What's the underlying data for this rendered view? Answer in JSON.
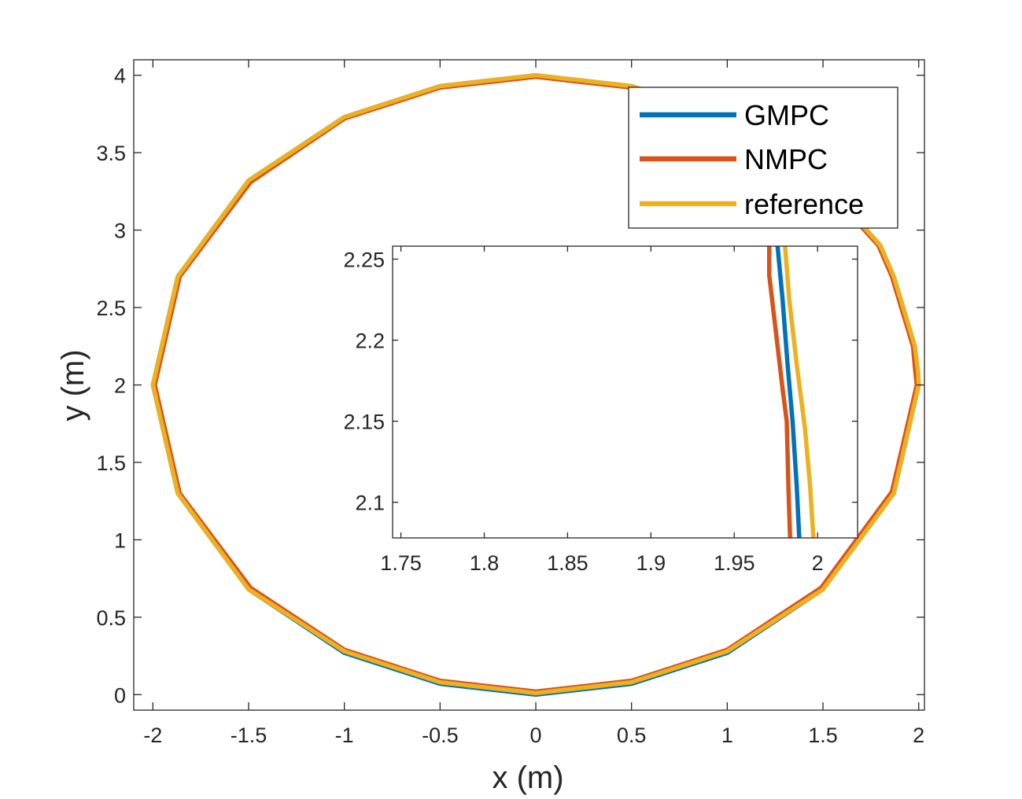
{
  "chart_data": [
    {
      "id": "main",
      "type": "line",
      "xlabel": "x (m)",
      "ylabel": "y (m)",
      "xlim": [
        -2.1,
        2.03
      ],
      "ylim": [
        -0.1,
        4.1
      ],
      "xticks": [
        "-2",
        "-1.5",
        "-1",
        "-0.5",
        "0",
        "0.5",
        "1",
        "1.5",
        "2"
      ],
      "yticks": [
        "0",
        "0.5",
        "1",
        "1.5",
        "2",
        "2.5",
        "3",
        "3.5",
        "4"
      ],
      "grid": false,
      "box": true,
      "legend": {
        "placement": "top-right"
      },
      "series": [
        {
          "name": "GMPC",
          "color": "#0072BD",
          "x": [
            0,
            0.5,
            1.0,
            1.5,
            1.87,
            2.0,
            1.987,
            1.98,
            1.87,
            1.8,
            1.5,
            1.0,
            0.5,
            0,
            -0.5,
            -1.0,
            -1.5,
            -1.87,
            -2.0,
            -1.87,
            -1.5,
            -1.0,
            -0.5,
            0
          ],
          "y": [
            0.0,
            0.07,
            0.27,
            0.68,
            1.3,
            2.0,
            2.08,
            2.25,
            2.7,
            2.9,
            3.32,
            3.73,
            3.93,
            4.0,
            3.93,
            3.73,
            3.32,
            2.7,
            2.0,
            1.3,
            0.68,
            0.27,
            0.07,
            0.0
          ]
        },
        {
          "name": "NMPC",
          "color": "#D95319",
          "x": [
            0,
            0.5,
            1.0,
            1.49,
            1.86,
            1.99,
            1.983,
            1.97,
            1.86,
            1.79,
            1.49,
            1.0,
            0.5,
            0,
            -0.5,
            -1.0,
            -1.49,
            -1.86,
            -1.99,
            -1.86,
            -1.49,
            -1.0,
            -0.5,
            0
          ],
          "y": [
            0.02,
            0.09,
            0.29,
            0.69,
            1.31,
            2.0,
            2.08,
            2.25,
            2.7,
            2.9,
            3.31,
            3.72,
            3.92,
            3.99,
            3.92,
            3.72,
            3.31,
            2.7,
            2.0,
            1.3,
            0.69,
            0.29,
            0.09,
            0.02
          ]
        },
        {
          "name": "reference",
          "color": "#EDB120",
          "x": [
            0,
            0.5,
            1.0,
            1.5,
            1.87,
            2.0,
            1.997,
            1.98,
            1.87,
            1.8,
            1.5,
            1.0,
            0.5,
            0,
            -0.5,
            -1.0,
            -1.5,
            -1.87,
            -2.0,
            -1.87,
            -1.5,
            -1.0,
            -0.5,
            0
          ],
          "y": [
            0.01,
            0.08,
            0.28,
            0.68,
            1.3,
            2.0,
            2.08,
            2.25,
            2.7,
            2.9,
            3.32,
            3.73,
            3.93,
            4.0,
            3.93,
            3.73,
            3.32,
            2.7,
            2.0,
            1.3,
            0.68,
            0.28,
            0.08,
            0.01
          ]
        }
      ]
    },
    {
      "id": "inset",
      "type": "line",
      "xlim": [
        1.745,
        2.024
      ],
      "ylim": [
        2.078,
        2.258
      ],
      "xticks": [
        "1.75",
        "1.8",
        "1.85",
        "1.9",
        "1.95",
        "2"
      ],
      "yticks": [
        "2.1",
        "2.15",
        "2.2",
        "2.25"
      ],
      "grid": false,
      "box": true,
      "series": [
        {
          "name": "GMPC",
          "color": "#0072BD",
          "x": [
            1.976,
            1.979,
            1.982,
            1.985,
            1.9875,
            1.989
          ],
          "y": [
            2.258,
            2.225,
            2.185,
            2.15,
            2.11,
            2.078
          ]
        },
        {
          "name": "NMPC",
          "color": "#D95319",
          "x": [
            1.971,
            1.971,
            1.975,
            1.979,
            1.9815,
            1.9825,
            1.9835
          ],
          "y": [
            2.258,
            2.24,
            2.205,
            2.17,
            2.15,
            2.11,
            2.078
          ]
        },
        {
          "name": "reference",
          "color": "#EDB120",
          "x": [
            1.9805,
            1.983,
            1.9875,
            1.9925,
            1.9955,
            1.9975
          ],
          "y": [
            2.258,
            2.225,
            2.185,
            2.145,
            2.11,
            2.078
          ]
        }
      ]
    }
  ]
}
